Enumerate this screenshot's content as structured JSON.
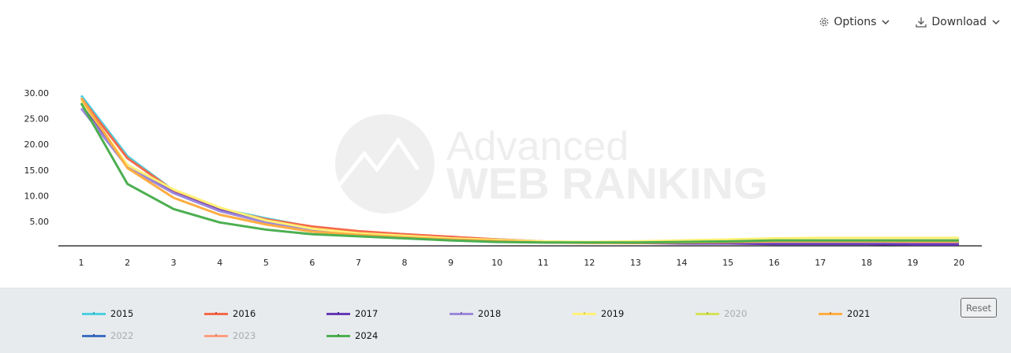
{
  "toolbar": {
    "options_label": "Options",
    "download_label": "Download",
    "options_icon": "gear-icon",
    "download_icon": "download-icon"
  },
  "watermark": {
    "line1": "Advanced",
    "line2": "WEB RANKING"
  },
  "legend": {
    "reset_label": "Reset"
  },
  "chart_data": {
    "type": "line",
    "title": "",
    "xlabel": "",
    "ylabel": "",
    "x": [
      1,
      2,
      3,
      4,
      5,
      6,
      7,
      8,
      9,
      10,
      11,
      12,
      13,
      14,
      15,
      16,
      17,
      18,
      19,
      20
    ],
    "y_ticks": [
      "5.00",
      "10.00",
      "15.00",
      "20.00",
      "25.00",
      "30.00"
    ],
    "ylim": [
      0,
      30
    ],
    "grid": false,
    "legend_position": "bottom",
    "series": [
      {
        "name": "2015",
        "color": "#4dd0e1",
        "visible": true,
        "values": [
          29.5,
          17.7,
          11.0,
          7.5,
          5.6,
          3.9,
          3.0,
          2.5,
          1.9,
          1.5,
          1.1,
          0.9,
          0.9,
          0.8,
          0.8,
          0.8,
          0.8,
          0.8,
          0.8,
          0.8
        ]
      },
      {
        "name": "2016",
        "color": "#f4694b",
        "visible": true,
        "values": [
          29.0,
          17.3,
          11.0,
          7.4,
          5.4,
          4.0,
          3.1,
          2.5,
          2.0,
          1.5,
          1.1,
          0.9,
          0.8,
          0.8,
          0.8,
          0.8,
          0.8,
          0.8,
          0.7,
          0.7
        ]
      },
      {
        "name": "2017",
        "color": "#673ab7",
        "visible": true,
        "values": [
          28.0,
          16.0,
          10.6,
          7.2,
          5.0,
          3.5,
          2.6,
          2.1,
          1.7,
          1.3,
          1.0,
          0.9,
          0.8,
          0.7,
          0.7,
          0.6,
          0.6,
          0.6,
          0.5,
          0.5
        ]
      },
      {
        "name": "2018",
        "color": "#9c88db",
        "visible": true,
        "values": [
          27.0,
          15.6,
          10.5,
          7.0,
          4.8,
          3.3,
          2.5,
          2.0,
          1.6,
          1.2,
          1.0,
          0.9,
          1.1,
          1.0,
          1.0,
          1.0,
          1.0,
          1.0,
          1.0,
          1.0
        ]
      },
      {
        "name": "2019",
        "color": "#fff176",
        "visible": true,
        "values": [
          28.5,
          16.0,
          11.2,
          7.7,
          5.2,
          3.6,
          2.7,
          2.2,
          1.7,
          1.4,
          1.1,
          1.0,
          1.1,
          1.3,
          1.5,
          1.7,
          1.8,
          1.8,
          1.8,
          1.8
        ]
      },
      {
        "name": "2020",
        "color": "#d4e157",
        "visible": false,
        "values": []
      },
      {
        "name": "2021",
        "color": "#ffad42",
        "visible": true,
        "values": [
          29.0,
          15.4,
          9.6,
          6.3,
          4.4,
          3.0,
          2.4,
          1.9,
          1.5,
          1.2,
          0.9,
          0.8,
          0.8,
          0.9,
          1.0,
          1.1,
          1.1,
          1.1,
          1.1,
          1.1
        ]
      },
      {
        "name": "2022",
        "color": "#3c6fc0",
        "visible": false,
        "values": []
      },
      {
        "name": "2023",
        "color": "#ff9e80",
        "visible": false,
        "values": []
      },
      {
        "name": "2024",
        "color": "#4caf50",
        "visible": true,
        "values": [
          28.0,
          12.3,
          7.4,
          4.8,
          3.4,
          2.5,
          2.1,
          1.7,
          1.3,
          1.0,
          0.9,
          0.9,
          0.9,
          1.0,
          1.1,
          1.3,
          1.3,
          1.3,
          1.3,
          1.3
        ]
      }
    ]
  }
}
